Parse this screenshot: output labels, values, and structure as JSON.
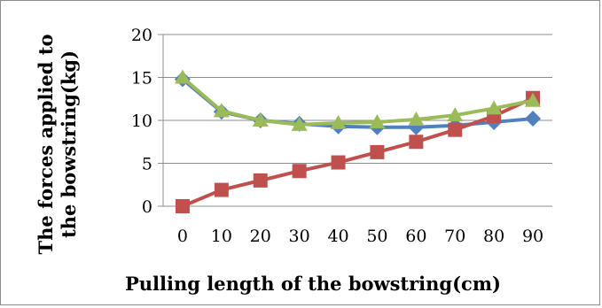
{
  "chart_data": {
    "type": "line",
    "title": "",
    "xlabel": "Pulling length of the bowstring(cm)",
    "ylabel_line1": "The forces applied to",
    "ylabel_line2": "the bowstring(kg)",
    "x": [
      0,
      10,
      20,
      30,
      40,
      50,
      60,
      70,
      80,
      90
    ],
    "x_tick_labels": [
      "0",
      "10",
      "20",
      "30",
      "40",
      "50",
      "60",
      "70",
      "80",
      "90"
    ],
    "ylim": [
      0,
      20
    ],
    "y_ticks": [
      0,
      5,
      10,
      15,
      20
    ],
    "y_tick_labels": [
      "0",
      "5",
      "10",
      "15",
      "20"
    ],
    "grid": "horizontal",
    "legend": "none",
    "series": [
      {
        "color": "#4f81bd",
        "marker": "diamond",
        "values": [
          14.8,
          11.0,
          10.0,
          9.6,
          9.3,
          9.2,
          9.2,
          9.4,
          9.8,
          10.2
        ]
      },
      {
        "color": "#c0504d",
        "marker": "square",
        "values": [
          0,
          1.9,
          3.0,
          4.1,
          5.1,
          6.3,
          7.5,
          8.9,
          10.5,
          12.6
        ]
      },
      {
        "color": "#9bbb59",
        "marker": "triangle",
        "values": [
          15.0,
          11.1,
          10.0,
          9.5,
          9.7,
          9.8,
          10.1,
          10.6,
          11.4,
          12.3
        ]
      }
    ]
  }
}
